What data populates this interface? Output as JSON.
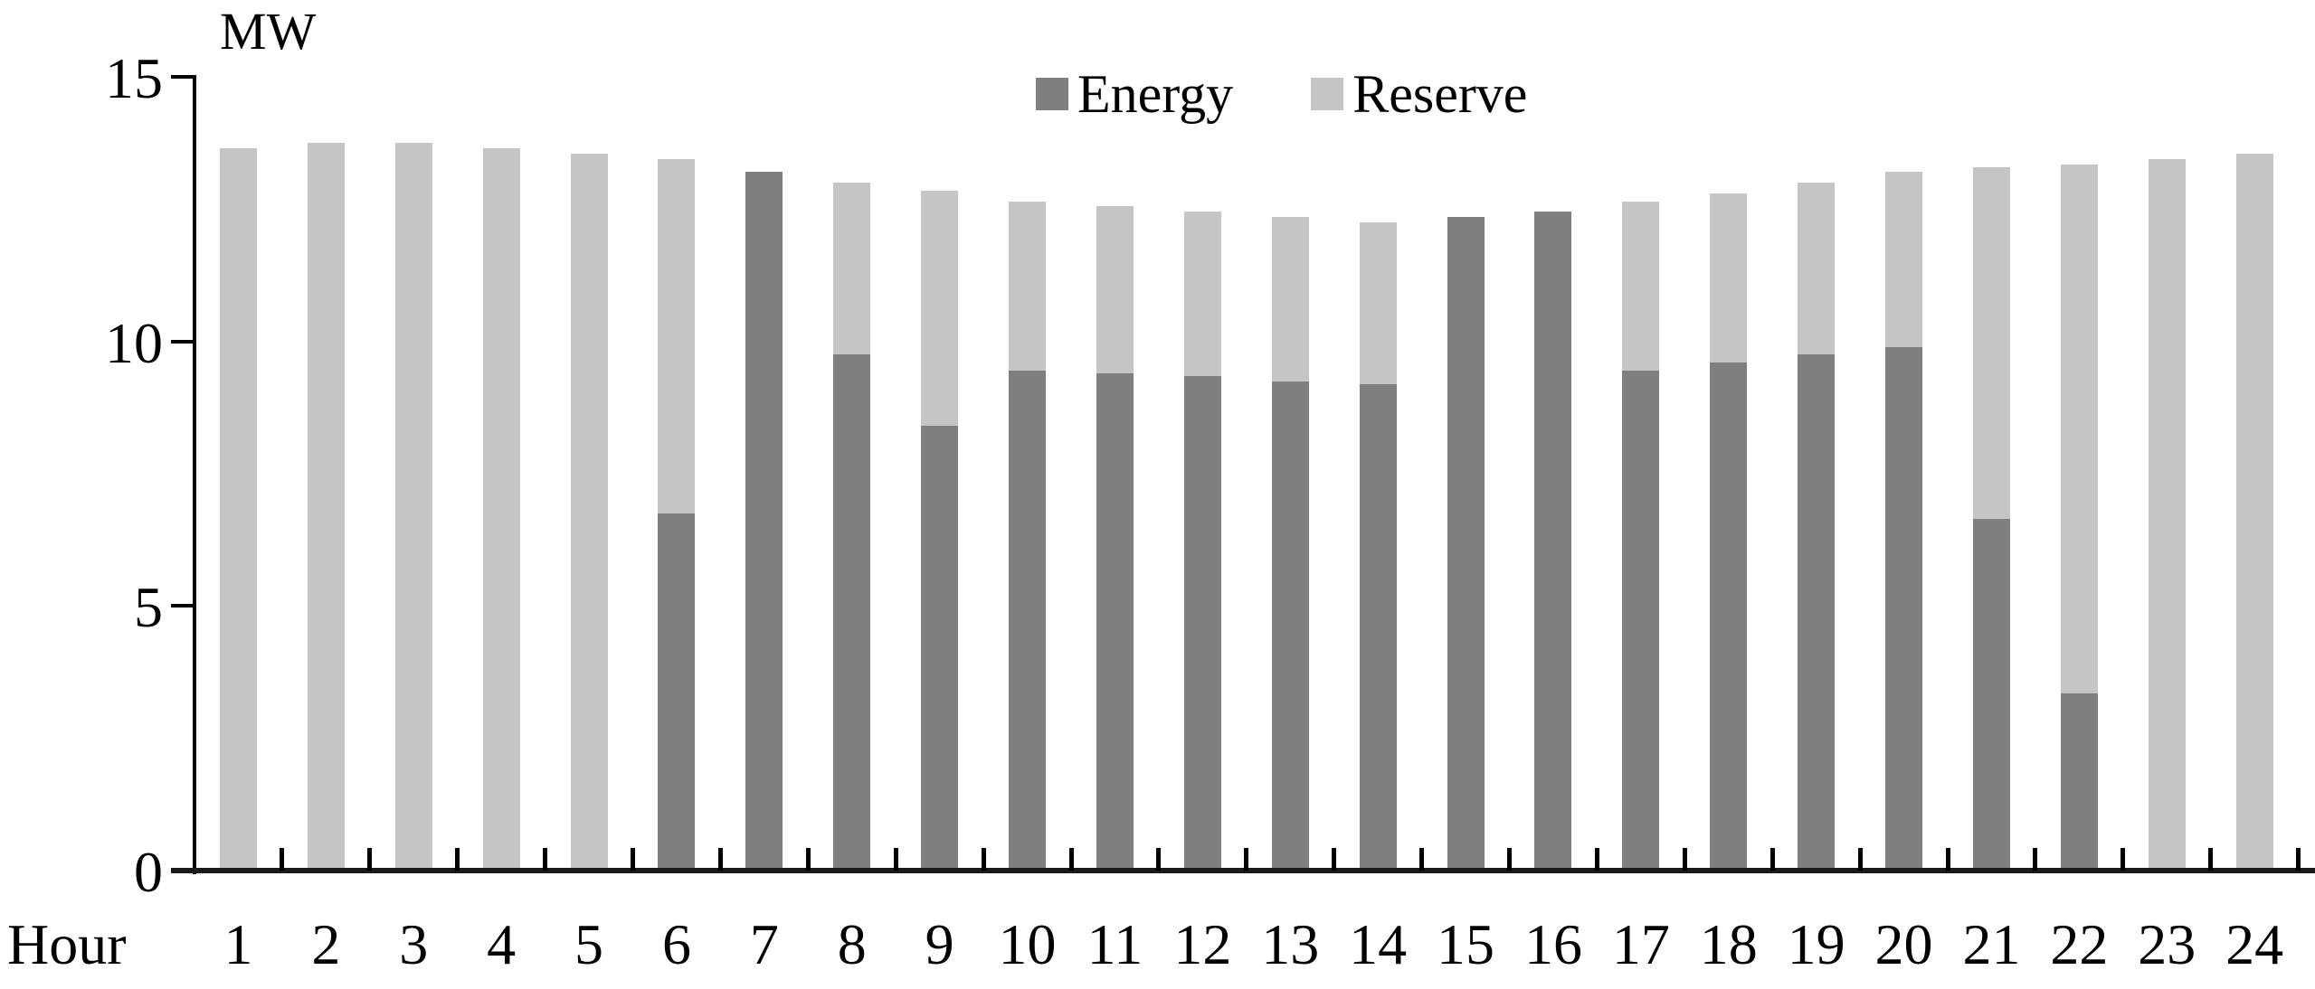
{
  "chart_data": {
    "type": "bar",
    "subtype": "stacked-column",
    "title": "",
    "unit_label": "MW",
    "xlabel": "Hour",
    "categories": [
      "1",
      "2",
      "3",
      "4",
      "5",
      "6",
      "7",
      "8",
      "9",
      "10",
      "11",
      "12",
      "13",
      "14",
      "15",
      "16",
      "17",
      "18",
      "19",
      "20",
      "21",
      "22",
      "23",
      "24"
    ],
    "series": [
      {
        "name": "Energy",
        "color": "#7f7f7f",
        "values": [
          0,
          0,
          0,
          0,
          0,
          6.75,
          13.2,
          9.75,
          8.4,
          9.45,
          9.4,
          9.35,
          9.25,
          9.2,
          12.35,
          12.45,
          9.45,
          9.6,
          9.75,
          9.9,
          6.65,
          3.35,
          0,
          0
        ]
      },
      {
        "name": "Reserve",
        "color": "#c5c5c5",
        "values": [
          13.65,
          13.75,
          13.75,
          13.65,
          13.55,
          6.7,
          0,
          3.25,
          4.45,
          3.2,
          3.15,
          3.1,
          3.1,
          3.05,
          0,
          0,
          3.2,
          3.2,
          3.25,
          3.3,
          6.65,
          10.0,
          13.45,
          13.55
        ]
      }
    ],
    "totals": [
      13.65,
      13.75,
      13.75,
      13.65,
      13.55,
      13.45,
      13.2,
      13.0,
      12.85,
      12.65,
      12.55,
      12.45,
      12.35,
      12.25,
      12.35,
      12.45,
      12.65,
      12.8,
      13.0,
      13.2,
      13.3,
      13.35,
      13.45,
      13.55
    ],
    "yticks": [
      "0",
      "5",
      "10",
      "15"
    ],
    "ylim": [
      0,
      15
    ],
    "grid": false,
    "legend_position": "top-center",
    "axis_color": "#000000",
    "background_color": "#ffffff"
  }
}
